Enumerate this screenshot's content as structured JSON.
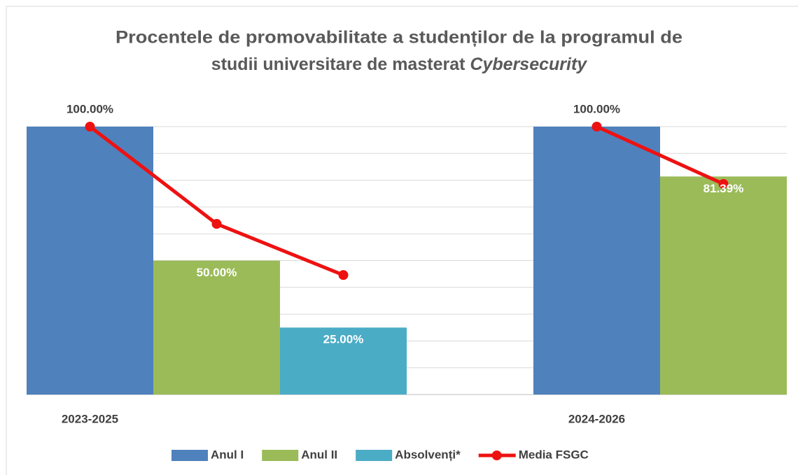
{
  "chart_data": {
    "type": "bar",
    "title": [
      "Procentele de promovabilitate a studenților de la programul de",
      "studii universitare de masterat"
    ],
    "title_italic": "Cybersecurity",
    "categories": [
      "2023-2025",
      "2024-2026"
    ],
    "series": [
      {
        "name": "Anul I",
        "color": "#4f81bd",
        "values": [
          100,
          100
        ],
        "value_labels": [
          "100.00%",
          "100.00%"
        ]
      },
      {
        "name": "Anul II",
        "color": "#9bbb59",
        "values": [
          50,
          81.39
        ],
        "value_labels": [
          "50.00%",
          "81.39%"
        ]
      },
      {
        "name": "Absolvenți*",
        "color": "#4bacc6",
        "values": [
          25,
          null
        ],
        "value_labels": [
          "25.00%",
          null
        ]
      }
    ],
    "line": {
      "name": "Media FSGC",
      "color": "#ee1111",
      "values": [
        [
          100,
          63.7,
          44.6
        ],
        [
          100,
          78.6,
          null
        ]
      ]
    },
    "ylim": [
      0,
      100
    ],
    "yticks": [
      0,
      10,
      20,
      30,
      40,
      50,
      60,
      70,
      80,
      90,
      100
    ],
    "grid": true,
    "legend": "bottom"
  }
}
